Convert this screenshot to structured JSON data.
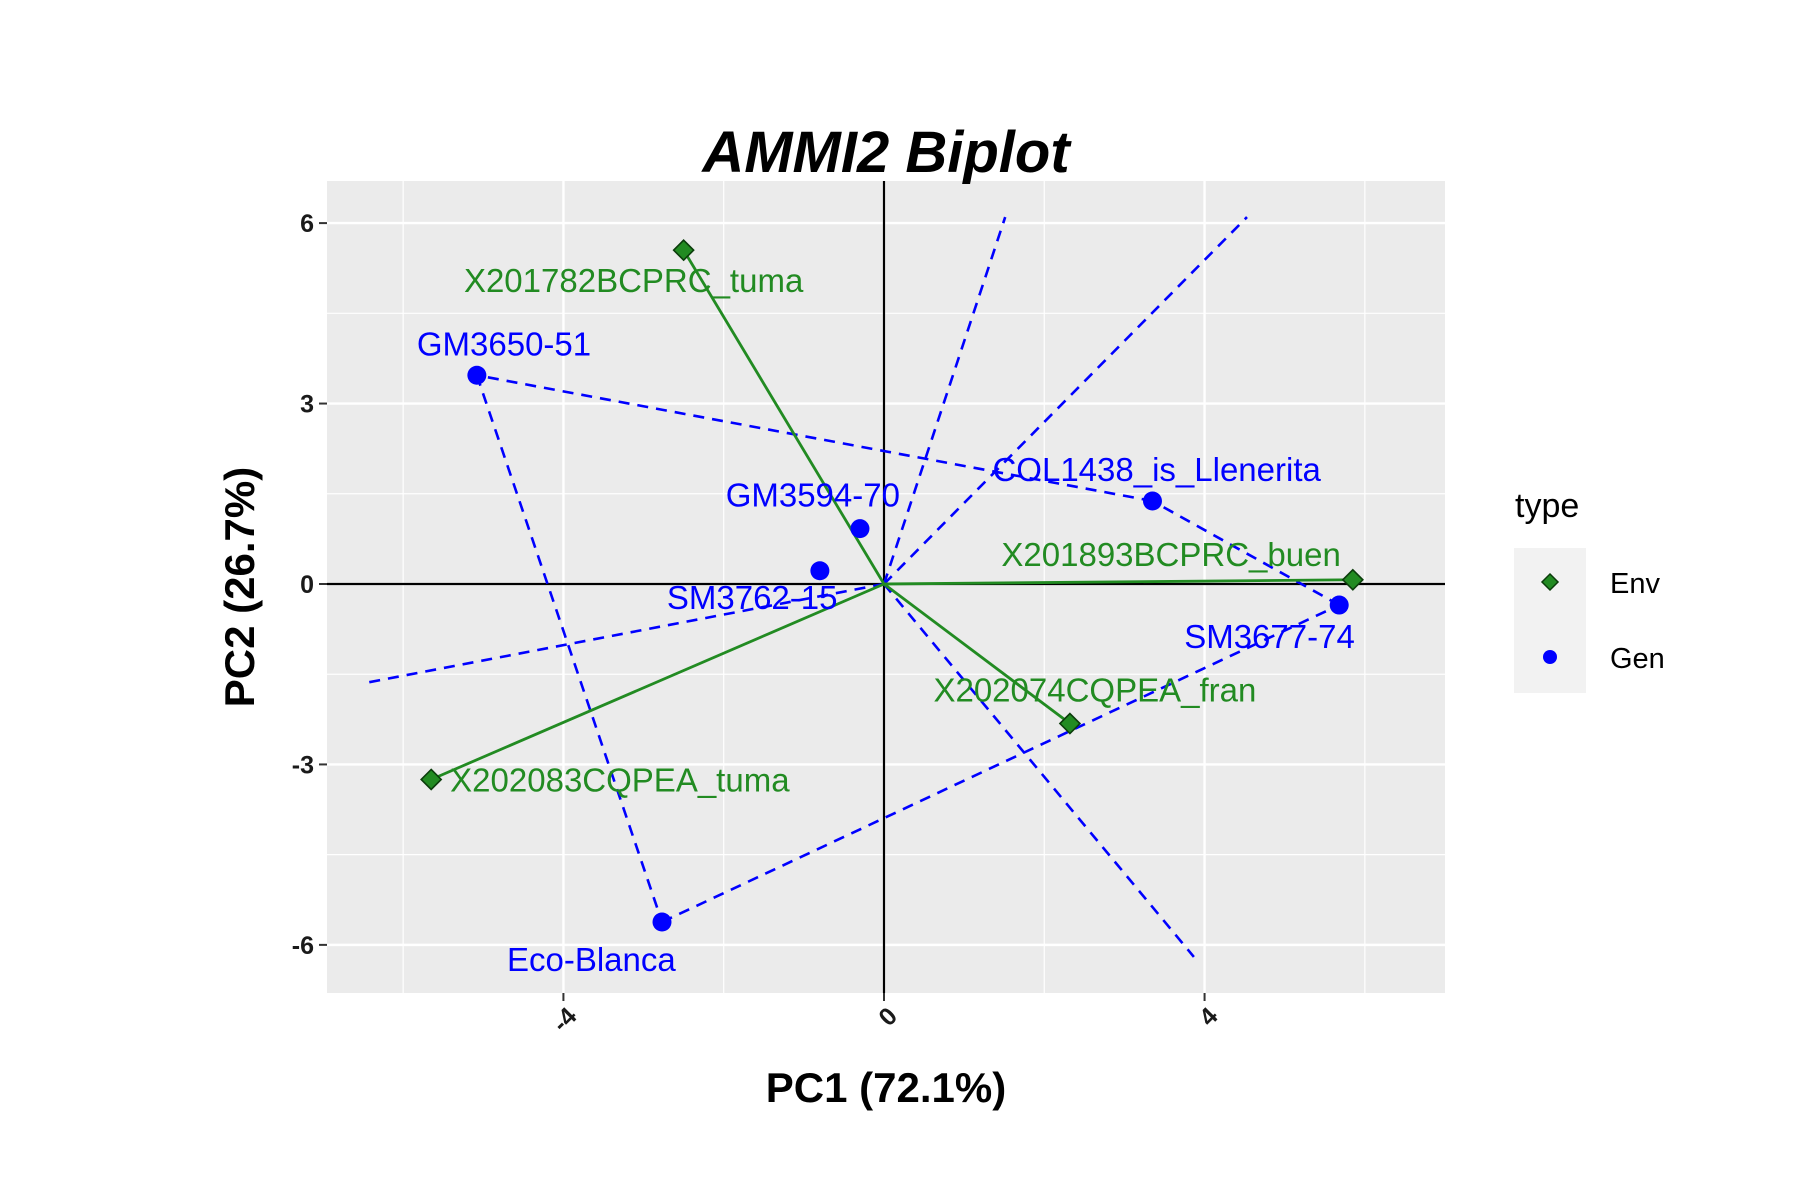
{
  "chart_data": {
    "type": "scatter",
    "title": "AMMI2 Biplot",
    "xlabel": "PC1 (72.1%)",
    "ylabel": "PC2 (26.7%)",
    "xlim": [
      -6.95,
      7.0
    ],
    "ylim": [
      -6.8,
      6.7
    ],
    "x_ticks": [
      -4,
      0,
      4
    ],
    "x_tick_labels": [
      "-4",
      "0",
      "4"
    ],
    "y_ticks": [
      -6,
      -3,
      0,
      3,
      6
    ],
    "y_tick_labels": [
      "-6",
      "-3",
      "0",
      "3",
      "6"
    ],
    "grid": true,
    "legend": {
      "title": "type",
      "position": "right",
      "entries": [
        {
          "label": "Env",
          "shape": "diamond",
          "color": "#228B22"
        },
        {
          "label": "Gen",
          "shape": "circle",
          "color": "#0000FF"
        }
      ]
    },
    "series": [
      {
        "name": "Env",
        "color": "#228B22",
        "points": [
          {
            "label": "X201782BCPRC_tuma",
            "x": -2.5,
            "y": 5.55
          },
          {
            "label": "X201893BCPRC_buen",
            "x": 5.85,
            "y": 0.07
          },
          {
            "label": "X202074CQPEA_fran",
            "x": 2.32,
            "y": -2.32
          },
          {
            "label": "X202083CQPEA_tuma",
            "x": -5.65,
            "y": -3.25
          }
        ]
      },
      {
        "name": "Gen",
        "color": "#0000FF",
        "points": [
          {
            "label": "GM3650-51",
            "x": -5.08,
            "y": 3.47
          },
          {
            "label": "COL1438_is_Llenerita",
            "x": 3.35,
            "y": 1.38
          },
          {
            "label": "GM3594-70",
            "x": -0.3,
            "y": 0.92
          },
          {
            "label": "SM3762-15",
            "x": -0.8,
            "y": 0.22
          },
          {
            "label": "SM3677-74",
            "x": 5.68,
            "y": -0.35
          },
          {
            "label": "Eco-Blanca",
            "x": -2.77,
            "y": -5.62
          }
        ]
      }
    ],
    "env_vectors_from_origin": true,
    "hull_color": "#0000FF",
    "ray_color": "#0000FF"
  }
}
